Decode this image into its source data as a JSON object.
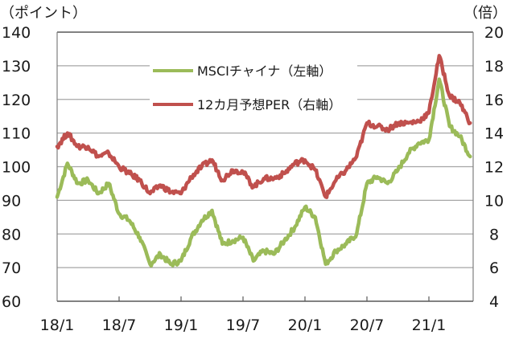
{
  "chart_data": {
    "type": "line",
    "title": "",
    "left_axis": {
      "unit_label": "（ポイント）",
      "ticks": [
        "140",
        "130",
        "120",
        "110",
        "100",
        "90",
        "80",
        "70",
        "60"
      ],
      "ylim": [
        60,
        140
      ]
    },
    "right_axis": {
      "unit_label": "（倍）",
      "ticks": [
        "20",
        "18",
        "16",
        "14",
        "12",
        "10",
        "8",
        "6",
        "4"
      ],
      "ylim": [
        4,
        20
      ]
    },
    "x_axis": {
      "tick_labels": [
        "18/1",
        "18/7",
        "19/1",
        "19/7",
        "20/1",
        "20/7",
        "21/1"
      ],
      "range": [
        "2018-01",
        "2021-05"
      ]
    },
    "grid": true,
    "legend": {
      "position": "inside-top-center",
      "entries": [
        {
          "label": "MSCIチャイナ（左軸）",
          "color": "#9bbb59"
        },
        {
          "label": "12カ月予想PER（右軸）",
          "color": "#c0504d"
        }
      ]
    },
    "x": [
      "18/1",
      "18/2",
      "18/3",
      "18/4",
      "18/5",
      "18/6",
      "18/7",
      "18/8",
      "18/9",
      "18/10",
      "18/11",
      "18/12",
      "19/1",
      "19/2",
      "19/3",
      "19/4",
      "19/5",
      "19/6",
      "19/7",
      "19/8",
      "19/9",
      "19/10",
      "19/11",
      "19/12",
      "20/1",
      "20/2",
      "20/3",
      "20/4",
      "20/5",
      "20/6",
      "20/7",
      "20/8",
      "20/9",
      "20/10",
      "20/11",
      "20/12",
      "21/1",
      "21/2",
      "21/3",
      "21/4",
      "21/5"
    ],
    "series": [
      {
        "name": "MSCIチャイナ（左軸）",
        "axis": "left",
        "color": "#9bbb59",
        "values": [
          91,
          101,
          95,
          96,
          92,
          95,
          86,
          84,
          79,
          71,
          74,
          71,
          72,
          79,
          84,
          87,
          77,
          78,
          79,
          72,
          75,
          74,
          78,
          82,
          88,
          85,
          71,
          75,
          77,
          80,
          95,
          97,
          95,
          99,
          104,
          107,
          108,
          126,
          112,
          109,
          103
        ]
      },
      {
        "name": "12カ月予想PER（右軸）",
        "axis": "right",
        "color": "#c0504d",
        "values": [
          13.2,
          14.0,
          13.2,
          13.2,
          12.6,
          12.8,
          12.0,
          11.6,
          11.2,
          10.4,
          10.9,
          10.5,
          10.4,
          11.4,
          12.0,
          12.4,
          11.2,
          11.8,
          11.7,
          10.8,
          11.3,
          11.3,
          11.6,
          12.2,
          12.4,
          11.8,
          10.2,
          11.2,
          11.8,
          12.6,
          14.6,
          14.4,
          14.2,
          14.6,
          14.6,
          14.7,
          15.2,
          18.6,
          16.2,
          15.8,
          14.6
        ]
      }
    ]
  }
}
